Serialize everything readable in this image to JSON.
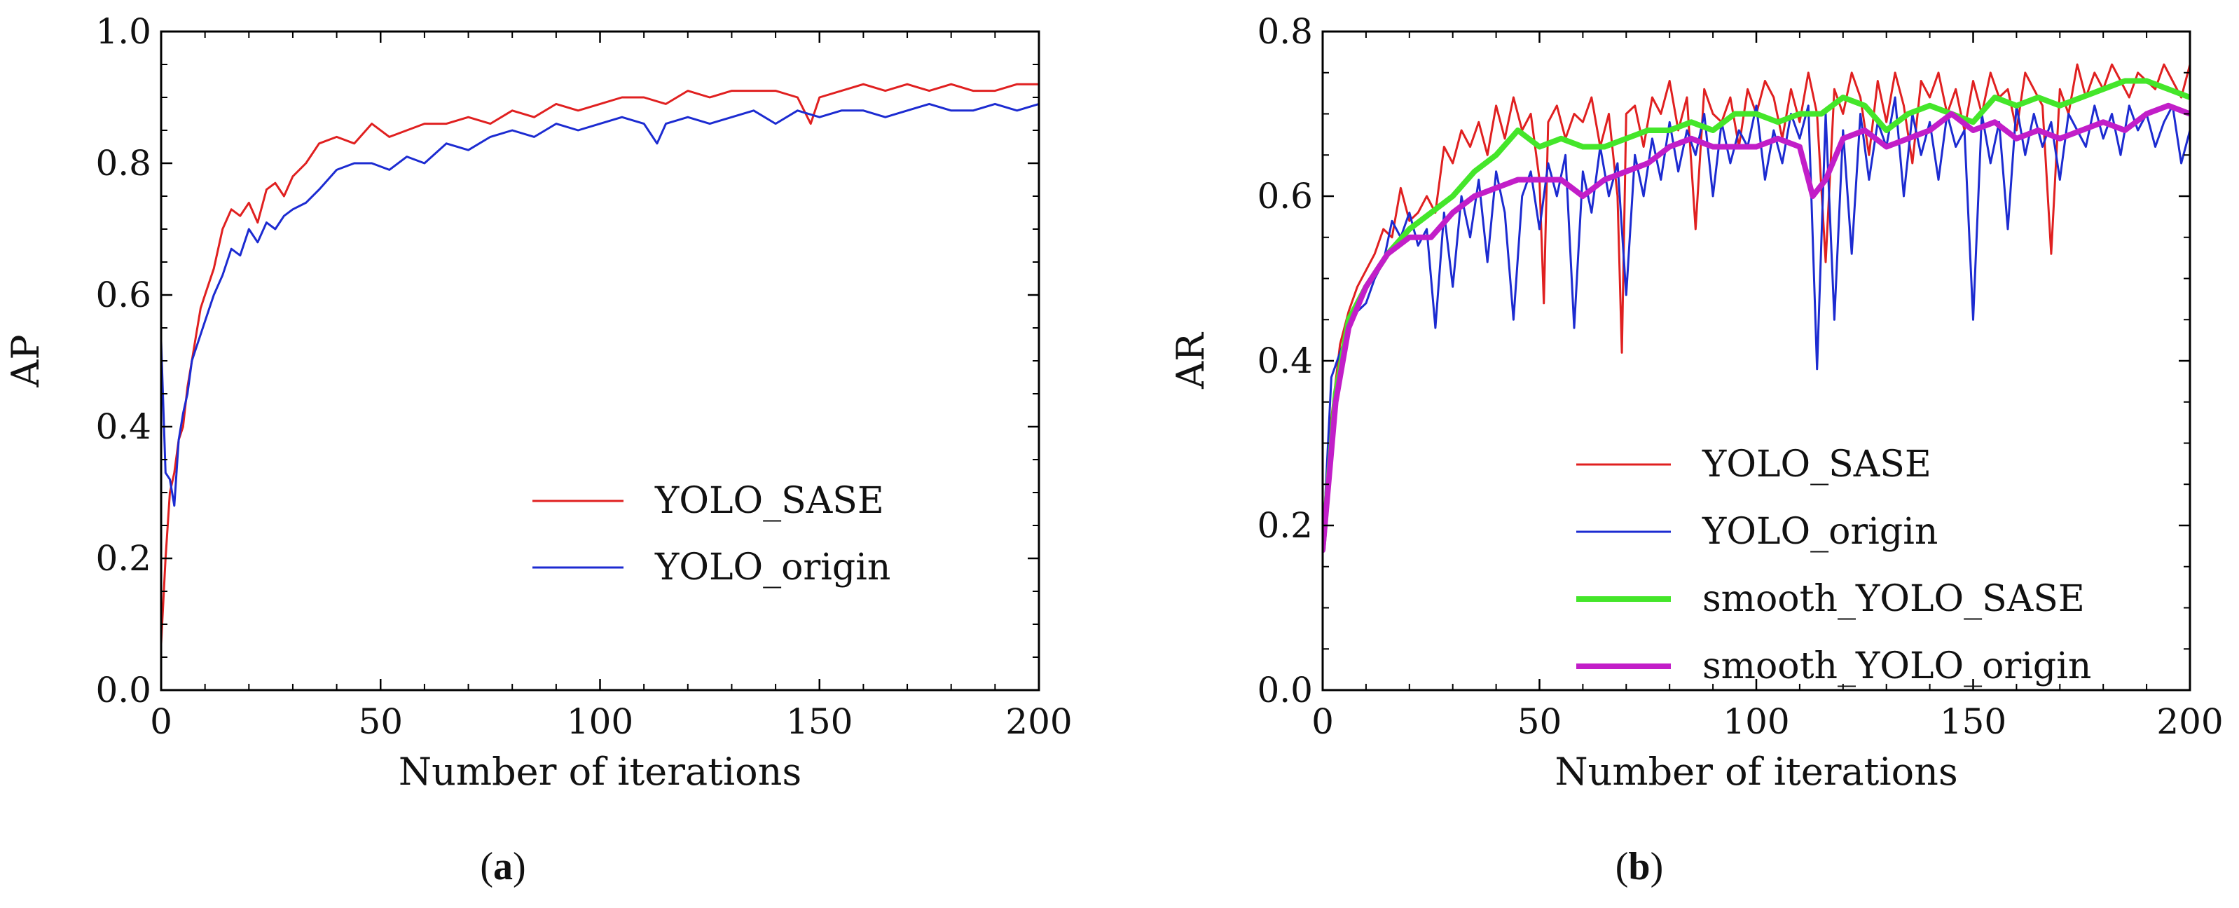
{
  "figure": {
    "captions": [
      "(a)",
      "(b)"
    ]
  },
  "colors": {
    "yolo_sase": "#e02020",
    "yolo_origin": "#1c2bd1",
    "smooth_sase": "#44e62a",
    "smooth_origin": "#c21ec8",
    "axes": "#000000"
  },
  "chart_data": [
    {
      "type": "line",
      "title": "",
      "xlabel": "Number of iterations",
      "ylabel": "AP",
      "xlim": [
        0,
        200
      ],
      "ylim": [
        0,
        1.0
      ],
      "xticks": [
        0,
        50,
        100,
        150,
        200
      ],
      "yticks": [
        0.0,
        0.2,
        0.4,
        0.6,
        0.8,
        1.0
      ],
      "xtick_labels": [
        "0",
        "50",
        "100",
        "150",
        "200"
      ],
      "ytick_labels": [
        "0.0",
        "0.2",
        "0.4",
        "0.6",
        "0.8",
        "1.0"
      ],
      "legend_position": "lower-right",
      "series": [
        {
          "name": "YOLO_SASE",
          "color": "#e02020",
          "width": 3,
          "x": [
            0,
            1,
            2,
            3,
            4,
            5,
            6,
            7,
            8,
            9,
            10,
            12,
            14,
            16,
            18,
            20,
            22,
            24,
            26,
            28,
            30,
            33,
            36,
            40,
            44,
            48,
            52,
            56,
            60,
            65,
            70,
            75,
            80,
            85,
            90,
            95,
            100,
            105,
            110,
            115,
            120,
            125,
            130,
            135,
            140,
            145,
            148,
            150,
            155,
            160,
            165,
            170,
            175,
            180,
            185,
            190,
            195,
            200
          ],
          "values": [
            0.07,
            0.2,
            0.3,
            0.33,
            0.38,
            0.4,
            0.46,
            0.5,
            0.54,
            0.58,
            0.6,
            0.64,
            0.7,
            0.73,
            0.72,
            0.74,
            0.71,
            0.76,
            0.77,
            0.75,
            0.78,
            0.8,
            0.83,
            0.84,
            0.83,
            0.86,
            0.84,
            0.85,
            0.86,
            0.86,
            0.87,
            0.86,
            0.88,
            0.87,
            0.89,
            0.88,
            0.89,
            0.9,
            0.9,
            0.89,
            0.91,
            0.9,
            0.91,
            0.91,
            0.91,
            0.9,
            0.86,
            0.9,
            0.91,
            0.92,
            0.91,
            0.92,
            0.91,
            0.92,
            0.91,
            0.91,
            0.92,
            0.92
          ]
        },
        {
          "name": "YOLO_origin",
          "color": "#1c2bd1",
          "width": 3,
          "x": [
            0,
            1,
            2,
            3,
            4,
            5,
            6,
            7,
            8,
            10,
            12,
            14,
            16,
            18,
            20,
            22,
            24,
            26,
            28,
            30,
            33,
            36,
            40,
            44,
            48,
            52,
            56,
            60,
            65,
            70,
            75,
            80,
            85,
            90,
            95,
            100,
            105,
            110,
            113,
            115,
            120,
            125,
            130,
            135,
            140,
            145,
            150,
            155,
            160,
            165,
            170,
            175,
            180,
            185,
            190,
            195,
            200
          ],
          "values": [
            0.53,
            0.33,
            0.32,
            0.28,
            0.38,
            0.42,
            0.45,
            0.5,
            0.52,
            0.56,
            0.6,
            0.63,
            0.67,
            0.66,
            0.7,
            0.68,
            0.71,
            0.7,
            0.72,
            0.73,
            0.74,
            0.76,
            0.79,
            0.8,
            0.8,
            0.79,
            0.81,
            0.8,
            0.83,
            0.82,
            0.84,
            0.85,
            0.84,
            0.86,
            0.85,
            0.86,
            0.87,
            0.86,
            0.83,
            0.86,
            0.87,
            0.86,
            0.87,
            0.88,
            0.86,
            0.88,
            0.87,
            0.88,
            0.88,
            0.87,
            0.88,
            0.89,
            0.88,
            0.88,
            0.89,
            0.88,
            0.89
          ]
        }
      ]
    },
    {
      "type": "line",
      "title": "",
      "xlabel": "Number of iterations",
      "ylabel": "AR",
      "xlim": [
        0,
        200
      ],
      "ylim": [
        0,
        0.8
      ],
      "xticks": [
        0,
        50,
        100,
        150,
        200
      ],
      "yticks": [
        0.0,
        0.2,
        0.4,
        0.6,
        0.8
      ],
      "xtick_labels": [
        "0",
        "50",
        "100",
        "150",
        "200"
      ],
      "ytick_labels": [
        "0.0",
        "0.2",
        "0.4",
        "0.6",
        "0.8"
      ],
      "legend_position": "lower-right",
      "series": [
        {
          "name": "YOLO_SASE",
          "color": "#e02020",
          "width": 3,
          "x": [
            0,
            2,
            4,
            6,
            8,
            10,
            12,
            14,
            16,
            18,
            20,
            22,
            24,
            26,
            28,
            30,
            32,
            34,
            36,
            38,
            40,
            42,
            44,
            46,
            48,
            50,
            51,
            52,
            54,
            56,
            58,
            60,
            62,
            64,
            66,
            68,
            69,
            70,
            72,
            74,
            76,
            78,
            80,
            82,
            84,
            86,
            88,
            90,
            92,
            94,
            96,
            98,
            100,
            102,
            104,
            106,
            108,
            110,
            112,
            114,
            116,
            118,
            120,
            122,
            124,
            126,
            128,
            130,
            132,
            134,
            136,
            138,
            140,
            142,
            144,
            146,
            148,
            150,
            152,
            154,
            156,
            158,
            160,
            162,
            164,
            166,
            168,
            170,
            172,
            174,
            176,
            178,
            180,
            182,
            184,
            186,
            188,
            190,
            192,
            194,
            196,
            198,
            200
          ],
          "values": [
            0.18,
            0.33,
            0.42,
            0.46,
            0.49,
            0.51,
            0.53,
            0.56,
            0.55,
            0.61,
            0.57,
            0.58,
            0.6,
            0.58,
            0.66,
            0.64,
            0.68,
            0.66,
            0.69,
            0.65,
            0.71,
            0.67,
            0.72,
            0.68,
            0.7,
            0.62,
            0.47,
            0.69,
            0.71,
            0.67,
            0.7,
            0.69,
            0.72,
            0.66,
            0.7,
            0.6,
            0.41,
            0.7,
            0.71,
            0.66,
            0.72,
            0.7,
            0.74,
            0.68,
            0.72,
            0.56,
            0.73,
            0.7,
            0.69,
            0.72,
            0.66,
            0.73,
            0.7,
            0.74,
            0.72,
            0.67,
            0.73,
            0.69,
            0.75,
            0.7,
            0.52,
            0.73,
            0.7,
            0.75,
            0.72,
            0.65,
            0.74,
            0.69,
            0.75,
            0.71,
            0.64,
            0.74,
            0.72,
            0.75,
            0.7,
            0.73,
            0.68,
            0.74,
            0.7,
            0.75,
            0.72,
            0.73,
            0.68,
            0.75,
            0.73,
            0.71,
            0.53,
            0.73,
            0.7,
            0.76,
            0.72,
            0.75,
            0.73,
            0.76,
            0.74,
            0.72,
            0.75,
            0.74,
            0.73,
            0.76,
            0.74,
            0.72,
            0.76
          ]
        },
        {
          "name": "YOLO_origin",
          "color": "#1c2bd1",
          "width": 3,
          "x": [
            0,
            2,
            4,
            6,
            8,
            10,
            12,
            14,
            16,
            18,
            20,
            22,
            24,
            26,
            28,
            30,
            32,
            34,
            36,
            38,
            40,
            42,
            44,
            46,
            48,
            50,
            52,
            54,
            56,
            58,
            60,
            62,
            64,
            66,
            68,
            70,
            72,
            74,
            76,
            78,
            80,
            82,
            84,
            86,
            88,
            90,
            92,
            94,
            96,
            98,
            100,
            102,
            104,
            106,
            108,
            110,
            112,
            114,
            116,
            118,
            120,
            122,
            124,
            126,
            128,
            130,
            132,
            134,
            136,
            138,
            140,
            142,
            144,
            146,
            148,
            150,
            152,
            154,
            156,
            158,
            160,
            162,
            164,
            166,
            168,
            170,
            172,
            174,
            176,
            178,
            180,
            182,
            184,
            186,
            188,
            190,
            192,
            194,
            196,
            198,
            200
          ],
          "values": [
            0.17,
            0.38,
            0.41,
            0.44,
            0.46,
            0.47,
            0.5,
            0.52,
            0.57,
            0.55,
            0.58,
            0.54,
            0.56,
            0.44,
            0.58,
            0.49,
            0.6,
            0.55,
            0.62,
            0.52,
            0.63,
            0.58,
            0.45,
            0.6,
            0.63,
            0.56,
            0.64,
            0.6,
            0.65,
            0.44,
            0.63,
            0.58,
            0.66,
            0.6,
            0.64,
            0.48,
            0.65,
            0.6,
            0.67,
            0.62,
            0.69,
            0.63,
            0.68,
            0.65,
            0.7,
            0.6,
            0.69,
            0.64,
            0.68,
            0.66,
            0.71,
            0.62,
            0.68,
            0.64,
            0.7,
            0.67,
            0.71,
            0.39,
            0.7,
            0.45,
            0.68,
            0.53,
            0.7,
            0.62,
            0.69,
            0.66,
            0.72,
            0.6,
            0.7,
            0.65,
            0.69,
            0.62,
            0.7,
            0.66,
            0.68,
            0.45,
            0.7,
            0.64,
            0.69,
            0.56,
            0.71,
            0.65,
            0.7,
            0.66,
            0.69,
            0.62,
            0.7,
            0.68,
            0.66,
            0.71,
            0.67,
            0.7,
            0.65,
            0.71,
            0.68,
            0.7,
            0.66,
            0.69,
            0.71,
            0.64,
            0.68
          ]
        },
        {
          "name": "smooth_YOLO_SASE",
          "color": "#44e62a",
          "width": 8,
          "x": [
            0,
            3,
            6,
            10,
            15,
            20,
            25,
            30,
            35,
            40,
            45,
            50,
            55,
            60,
            65,
            70,
            75,
            80,
            85,
            90,
            95,
            100,
            105,
            110,
            115,
            120,
            125,
            130,
            135,
            140,
            145,
            150,
            155,
            160,
            165,
            170,
            175,
            180,
            185,
            190,
            195,
            200
          ],
          "values": [
            0.17,
            0.36,
            0.45,
            0.49,
            0.53,
            0.56,
            0.58,
            0.6,
            0.63,
            0.65,
            0.68,
            0.66,
            0.67,
            0.66,
            0.66,
            0.67,
            0.68,
            0.68,
            0.69,
            0.68,
            0.7,
            0.7,
            0.69,
            0.7,
            0.7,
            0.72,
            0.71,
            0.68,
            0.7,
            0.71,
            0.7,
            0.69,
            0.72,
            0.71,
            0.72,
            0.71,
            0.72,
            0.73,
            0.74,
            0.74,
            0.73,
            0.72
          ]
        },
        {
          "name": "smooth_YOLO_origin",
          "color": "#c21ec8",
          "width": 8,
          "x": [
            0,
            3,
            6,
            10,
            15,
            20,
            25,
            30,
            35,
            40,
            45,
            50,
            55,
            60,
            65,
            70,
            75,
            80,
            85,
            90,
            95,
            100,
            105,
            110,
            113,
            116,
            120,
            125,
            130,
            135,
            140,
            145,
            150,
            155,
            160,
            165,
            170,
            175,
            180,
            185,
            190,
            195,
            200
          ],
          "values": [
            0.17,
            0.35,
            0.44,
            0.49,
            0.53,
            0.55,
            0.55,
            0.58,
            0.6,
            0.61,
            0.62,
            0.62,
            0.62,
            0.6,
            0.62,
            0.63,
            0.64,
            0.66,
            0.67,
            0.66,
            0.66,
            0.66,
            0.67,
            0.66,
            0.6,
            0.62,
            0.67,
            0.68,
            0.66,
            0.67,
            0.68,
            0.7,
            0.68,
            0.69,
            0.67,
            0.68,
            0.67,
            0.68,
            0.69,
            0.68,
            0.7,
            0.71,
            0.7
          ]
        }
      ]
    }
  ]
}
